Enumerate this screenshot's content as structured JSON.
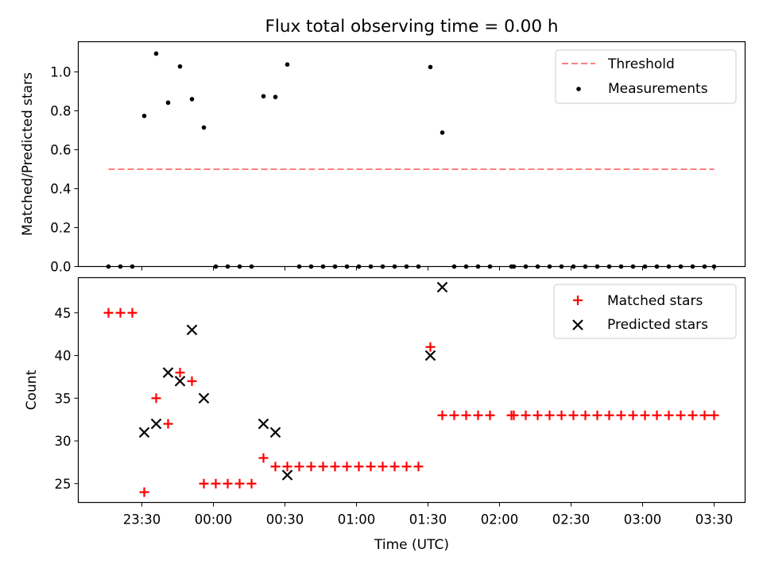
{
  "chart_data": [
    {
      "type": "scatter",
      "title": "Flux total observing time = 0.00 h",
      "ylabel": "Matched/Predicted stars",
      "xlabel": "",
      "ylim": [
        0,
        1.15
      ],
      "yticks": [
        "0.0",
        "0.2",
        "0.4",
        "0.6",
        "0.8",
        "1.0"
      ],
      "grid": false,
      "legend_position": "top-right",
      "colors": {
        "threshold": "#ff7f7f",
        "measurements": "#000000"
      },
      "threshold": {
        "name": "Threshold",
        "y": 0.5,
        "x_start": "23:16",
        "x_end": "03:30"
      },
      "series": [
        {
          "name": "Measurements",
          "points": [
            [
              "23:16",
              0.0
            ],
            [
              "23:21",
              0.0
            ],
            [
              "23:26",
              0.0
            ],
            [
              "23:31",
              0.774
            ],
            [
              "23:36",
              1.094
            ],
            [
              "23:41",
              0.842
            ],
            [
              "23:46",
              1.028
            ],
            [
              "23:51",
              0.86
            ],
            [
              "23:56",
              0.714
            ],
            [
              "00:01",
              0.0
            ],
            [
              "00:06",
              0.0
            ],
            [
              "00:11",
              0.0
            ],
            [
              "00:16",
              0.0
            ],
            [
              "00:21",
              0.875
            ],
            [
              "00:26",
              0.871
            ],
            [
              "00:31",
              1.038
            ],
            [
              "00:36",
              0.0
            ],
            [
              "00:41",
              0.0
            ],
            [
              "00:46",
              0.0
            ],
            [
              "00:51",
              0.0
            ],
            [
              "00:56",
              0.0
            ],
            [
              "01:01",
              0.0
            ],
            [
              "01:06",
              0.0
            ],
            [
              "01:11",
              0.0
            ],
            [
              "01:16",
              0.0
            ],
            [
              "01:21",
              0.0
            ],
            [
              "01:26",
              0.0
            ],
            [
              "01:31",
              1.025
            ],
            [
              "01:36",
              0.688
            ],
            [
              "01:41",
              0.0
            ],
            [
              "01:46",
              0.0
            ],
            [
              "01:51",
              0.0
            ],
            [
              "01:56",
              0.0
            ],
            [
              "02:05",
              0.0
            ],
            [
              "02:06",
              0.0
            ],
            [
              "02:11",
              0.0
            ],
            [
              "02:16",
              0.0
            ],
            [
              "02:21",
              0.0
            ],
            [
              "02:26",
              0.0
            ],
            [
              "02:31",
              0.0
            ],
            [
              "02:36",
              0.0
            ],
            [
              "02:41",
              0.0
            ],
            [
              "02:46",
              0.0
            ],
            [
              "02:51",
              0.0
            ],
            [
              "02:56",
              0.0
            ],
            [
              "03:01",
              0.0
            ],
            [
              "03:06",
              0.0
            ],
            [
              "03:11",
              0.0
            ],
            [
              "03:16",
              0.0
            ],
            [
              "03:21",
              0.0
            ],
            [
              "03:26",
              0.0
            ],
            [
              "03:30",
              0.0
            ]
          ]
        }
      ]
    },
    {
      "type": "scatter",
      "title": "",
      "ylabel": "Count",
      "xlabel": "Time (UTC)",
      "xticks": [
        "23:30",
        "00:00",
        "00:30",
        "01:00",
        "01:30",
        "02:00",
        "02:30",
        "03:00",
        "03:30"
      ],
      "ylim": [
        23,
        49
      ],
      "yticks": [
        "25",
        "30",
        "35",
        "40",
        "45"
      ],
      "grid": false,
      "legend_position": "top-right",
      "colors": {
        "matched": "#ff0000",
        "predicted": "#000000"
      },
      "series": [
        {
          "name": "Matched stars",
          "marker": "plus",
          "points": [
            [
              "23:16",
              45
            ],
            [
              "23:21",
              45
            ],
            [
              "23:26",
              45
            ],
            [
              "23:31",
              24
            ],
            [
              "23:36",
              35
            ],
            [
              "23:41",
              32
            ],
            [
              "23:46",
              38
            ],
            [
              "23:51",
              37
            ],
            [
              "23:56",
              25
            ],
            [
              "00:01",
              25
            ],
            [
              "00:06",
              25
            ],
            [
              "00:11",
              25
            ],
            [
              "00:16",
              25
            ],
            [
              "00:21",
              28
            ],
            [
              "00:26",
              27
            ],
            [
              "00:31",
              27
            ],
            [
              "00:36",
              27
            ],
            [
              "00:41",
              27
            ],
            [
              "00:46",
              27
            ],
            [
              "00:51",
              27
            ],
            [
              "00:56",
              27
            ],
            [
              "01:01",
              27
            ],
            [
              "01:06",
              27
            ],
            [
              "01:11",
              27
            ],
            [
              "01:16",
              27
            ],
            [
              "01:21",
              27
            ],
            [
              "01:26",
              27
            ],
            [
              "01:31",
              41
            ],
            [
              "01:36",
              33
            ],
            [
              "01:41",
              33
            ],
            [
              "01:46",
              33
            ],
            [
              "01:51",
              33
            ],
            [
              "01:56",
              33
            ],
            [
              "02:05",
              33
            ],
            [
              "02:06",
              33
            ],
            [
              "02:11",
              33
            ],
            [
              "02:16",
              33
            ],
            [
              "02:21",
              33
            ],
            [
              "02:26",
              33
            ],
            [
              "02:31",
              33
            ],
            [
              "02:36",
              33
            ],
            [
              "02:41",
              33
            ],
            [
              "02:46",
              33
            ],
            [
              "02:51",
              33
            ],
            [
              "02:56",
              33
            ],
            [
              "03:01",
              33
            ],
            [
              "03:06",
              33
            ],
            [
              "03:11",
              33
            ],
            [
              "03:16",
              33
            ],
            [
              "03:21",
              33
            ],
            [
              "03:26",
              33
            ],
            [
              "03:30",
              33
            ]
          ]
        },
        {
          "name": "Predicted stars",
          "marker": "x",
          "points": [
            [
              "23:31",
              31
            ],
            [
              "23:36",
              32
            ],
            [
              "23:41",
              38
            ],
            [
              "23:46",
              37
            ],
            [
              "23:51",
              43
            ],
            [
              "23:56",
              35
            ],
            [
              "00:21",
              32
            ],
            [
              "00:26",
              31
            ],
            [
              "00:31",
              26
            ],
            [
              "01:31",
              40
            ],
            [
              "01:36",
              48
            ]
          ]
        }
      ]
    }
  ]
}
